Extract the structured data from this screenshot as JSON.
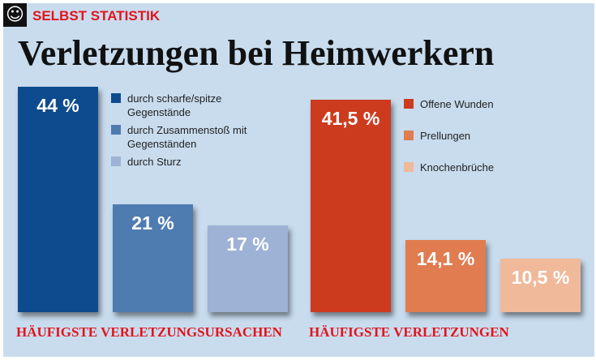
{
  "header": {
    "logo_icon": "smiley-icon",
    "kicker": "SELBST STATISTIK",
    "title": "Verletzungen bei Heimwerkern"
  },
  "chart_data": [
    {
      "type": "bar",
      "title": "HÄUFIGSTE VERLETZUNGSURSACHEN",
      "categories": [
        "durch scharfe/spitze Gegenstände",
        "durch Zusammenstoß mit Gegenständen",
        "durch Sturz"
      ],
      "values": [
        44,
        21,
        17
      ],
      "labels": [
        "44 %",
        "21 %",
        "17 %"
      ],
      "colors": [
        "#0d4b8e",
        "#4f7cb0",
        "#9db2d4"
      ],
      "ylim": [
        0,
        44
      ]
    },
    {
      "type": "bar",
      "title": "HÄUFIGSTE VERLETZUNGEN",
      "categories": [
        "Offene Wunden",
        "Prellungen",
        "Knochenbrüche"
      ],
      "values": [
        41.5,
        14.1,
        10.5
      ],
      "labels": [
        "41,5 %",
        "14,1 %",
        "10,5 %"
      ],
      "colors": [
        "#cd3b1f",
        "#e07c50",
        "#f0b99a"
      ],
      "ylim": [
        0,
        44
      ]
    }
  ]
}
